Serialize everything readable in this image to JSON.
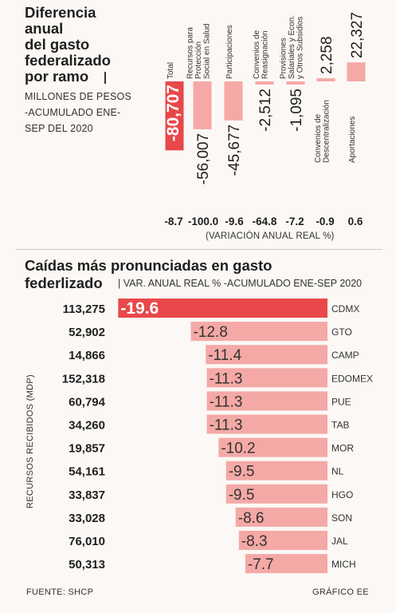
{
  "chart1": {
    "title_lines": [
      "Diferencia",
      "anual",
      "del gasto",
      "federalizado",
      "por ramo"
    ],
    "subtitle_lines": [
      "MILLONES DE PESOS",
      "-ACUMULADO ENE-",
      "SEP DEL 2020"
    ],
    "variation_label": "(VARIACIÓN ANUAL REAL %)",
    "colors": {
      "highlight": "#e8484a",
      "bar": "#f4a9a6",
      "text": "#1f1f1f"
    }
  },
  "chart2": {
    "title": "Caídas más pronunciadas en gasto",
    "title_line2": "federlizado",
    "subtitle": "| VAR. ANUAL REAL % -ACUMULADO ENE-SEP 2020",
    "ylabel": "RECURSOS RECIBIDOS (MDP)",
    "colors": {
      "highlight": "#e8484a",
      "bar": "#f4a9a6"
    }
  },
  "footer": {
    "source": "FUENTE: SHCP",
    "credit": "GRÁFICO EE"
  },
  "chart_data": [
    {
      "type": "bar",
      "title": "Diferencia anual del gasto federalizado por ramo",
      "ylabel": "MILLONES DE PESOS -ACUMULADO ENE-SEP DEL 2020",
      "categories": [
        "Total",
        "Recursos para Protección Social en Salud",
        "Participaciones",
        "Convenios de Reasignación",
        "Provisiones Salariales y Econ. y Otros Subsidios",
        "Convenios de Descentralización",
        "Aportaciones"
      ],
      "category_lines": [
        [
          "Total"
        ],
        [
          "Recursos para",
          "Protección",
          "Social en Salud"
        ],
        [
          "Participaciones"
        ],
        [
          "Convenios de",
          "Reasignación"
        ],
        [
          "Provisiones",
          "Salariales y Econ.",
          "y Otros Subsidios"
        ],
        [
          "Convenios de",
          "Descentralización"
        ],
        [
          "Aportaciones"
        ]
      ],
      "values": [
        -80707,
        -56007,
        -45677,
        -2512,
        -1095,
        2258,
        22327
      ],
      "value_labels": [
        "-80,707",
        "-56,007",
        "-45,677",
        "-2,512",
        "-1,095",
        "2,258",
        "22,327"
      ],
      "variation_labels": [
        "-8.7",
        "-100.0",
        "-9.6",
        "-64.8",
        "-7.2",
        "-0.9",
        "0.6"
      ],
      "highlight_index": 0
    },
    {
      "type": "bar",
      "orientation": "horizontal",
      "title": "Caídas más pronunciadas en gasto federlizado",
      "categories": [
        "CDMX",
        "GTO",
        "CAMP",
        "EDOMEX",
        "PUE",
        "TAB",
        "MOR",
        "NL",
        "HGO",
        "SON",
        "JAL",
        "MICH"
      ],
      "values": [
        -19.6,
        -12.8,
        -11.4,
        -11.3,
        -11.3,
        -11.3,
        -10.2,
        -9.5,
        -9.5,
        -8.6,
        -8.3,
        -7.7
      ],
      "value_labels": [
        "-19.6",
        "-12.8",
        "-11.4",
        "-11.3",
        "-11.3",
        "-11.3",
        "-10.2",
        "-9.5",
        "-9.5",
        "-8.6",
        "-8.3",
        "-7.7"
      ],
      "recursos_recibidos_mdp": [
        "113,275",
        "52,902",
        "14,866",
        "152,318",
        "60,794",
        "34,260",
        "19,857",
        "54,161",
        "33,837",
        "33,028",
        "76,010",
        "50,313"
      ],
      "highlight_index": 0
    }
  ]
}
